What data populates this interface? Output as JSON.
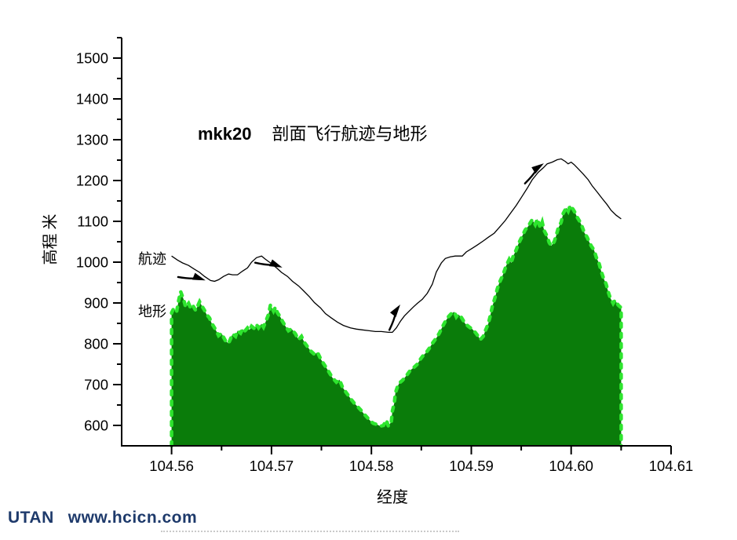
{
  "title": {
    "prefix": "mkk20",
    "main": "剖面飞行航迹与地形"
  },
  "labels": {
    "trajectory": "航迹",
    "terrain": "地形"
  },
  "axis": {
    "ylabel": "高程 米",
    "xlabel": "经度"
  },
  "footer": {
    "brand": "UTAN",
    "url": "www.hcicn.com",
    "color": "#1e3a6b"
  },
  "colors": {
    "terrain_fill": "#0a7c0a",
    "terrain_edge": "#2ee52e",
    "line": "#000000",
    "axis": "#000000"
  },
  "chart_data": {
    "type": "area+line",
    "title": "mkk20 剖面飞行航迹与地形",
    "xlabel": "经度",
    "ylabel": "高程 米",
    "xlim": [
      104.555,
      104.61
    ],
    "ylim": [
      550,
      1550
    ],
    "grid": false,
    "xticks": {
      "major": [
        104.56,
        104.57,
        104.58,
        104.59,
        104.6,
        104.61
      ],
      "minor": [
        104.565,
        104.575,
        104.585,
        104.595,
        104.605
      ],
      "decimals": 2
    },
    "yticks": {
      "major": [
        600,
        700,
        800,
        900,
        1000,
        1100,
        1200,
        1300,
        1400,
        1500
      ],
      "minor": [
        650,
        750,
        850,
        950,
        1050,
        1150,
        1250,
        1350,
        1450,
        1550
      ]
    },
    "series": [
      {
        "name": "地形",
        "type": "area",
        "points": [
          [
            104.56,
            876
          ],
          [
            104.5602,
            886
          ],
          [
            104.5605,
            878
          ],
          [
            104.5607,
            905
          ],
          [
            104.5609,
            928
          ],
          [
            104.5612,
            909
          ],
          [
            104.5614,
            890
          ],
          [
            104.5617,
            899
          ],
          [
            104.5619,
            888
          ],
          [
            104.5621,
            895
          ],
          [
            104.5624,
            882
          ],
          [
            104.5626,
            892
          ],
          [
            104.5628,
            903
          ],
          [
            104.5631,
            890
          ],
          [
            104.5633,
            882
          ],
          [
            104.5635,
            872
          ],
          [
            104.5638,
            863
          ],
          [
            104.564,
            851
          ],
          [
            104.5643,
            839
          ],
          [
            104.5645,
            830
          ],
          [
            104.5647,
            820
          ],
          [
            104.565,
            826
          ],
          [
            104.5652,
            816
          ],
          [
            104.5654,
            807
          ],
          [
            104.5657,
            801
          ],
          [
            104.5659,
            812
          ],
          [
            104.5661,
            824
          ],
          [
            104.5664,
            818
          ],
          [
            104.5666,
            832
          ],
          [
            104.5669,
            826
          ],
          [
            104.5671,
            836
          ],
          [
            104.5673,
            830
          ],
          [
            104.5676,
            839
          ],
          [
            104.5678,
            834
          ],
          [
            104.568,
            843
          ],
          [
            104.5683,
            837
          ],
          [
            104.5685,
            847
          ],
          [
            104.5687,
            839
          ],
          [
            104.569,
            849
          ],
          [
            104.5692,
            841
          ],
          [
            104.5694,
            853
          ],
          [
            104.5697,
            872
          ],
          [
            104.5699,
            895
          ],
          [
            104.5702,
            880
          ],
          [
            104.5704,
            890
          ],
          [
            104.5706,
            876
          ],
          [
            104.5709,
            865
          ],
          [
            104.5711,
            855
          ],
          [
            104.5714,
            843
          ],
          [
            104.5717,
            832
          ],
          [
            104.572,
            837
          ],
          [
            104.5724,
            824
          ],
          [
            104.5727,
            810
          ],
          [
            104.573,
            818
          ],
          [
            104.5733,
            803
          ],
          [
            104.5736,
            793
          ],
          [
            104.5739,
            783
          ],
          [
            104.5743,
            774
          ],
          [
            104.5746,
            779
          ],
          [
            104.5749,
            764
          ],
          [
            104.5752,
            752
          ],
          [
            104.5755,
            741
          ],
          [
            104.5758,
            729
          ],
          [
            104.5761,
            717
          ],
          [
            104.5765,
            706
          ],
          [
            104.5768,
            712
          ],
          [
            104.5771,
            694
          ],
          [
            104.5774,
            683
          ],
          [
            104.5777,
            673
          ],
          [
            104.578,
            663
          ],
          [
            104.5783,
            654
          ],
          [
            104.5787,
            644
          ],
          [
            104.579,
            636
          ],
          [
            104.5793,
            627
          ],
          [
            104.5796,
            619
          ],
          [
            104.5799,
            611
          ],
          [
            104.5802,
            605
          ],
          [
            104.5806,
            602
          ],
          [
            104.5809,
            598
          ],
          [
            104.5812,
            600
          ],
          [
            104.5815,
            613
          ],
          [
            104.5817,
            598
          ],
          [
            104.582,
            609
          ],
          [
            104.5821,
            635
          ],
          [
            104.5823,
            656
          ],
          [
            104.5824,
            679
          ],
          [
            104.5826,
            694
          ],
          [
            104.5828,
            704
          ],
          [
            104.5831,
            710
          ],
          [
            104.5833,
            716
          ],
          [
            104.5836,
            725
          ],
          [
            104.5839,
            735
          ],
          [
            104.5843,
            743
          ],
          [
            104.5846,
            750
          ],
          [
            104.5849,
            762
          ],
          [
            104.5852,
            772
          ],
          [
            104.5855,
            779
          ],
          [
            104.5858,
            789
          ],
          [
            104.5861,
            801
          ],
          [
            104.5865,
            814
          ],
          [
            104.5868,
            826
          ],
          [
            104.5871,
            841
          ],
          [
            104.5874,
            855
          ],
          [
            104.5877,
            866
          ],
          [
            104.588,
            874
          ],
          [
            104.5883,
            878
          ],
          [
            104.5885,
            866
          ],
          [
            104.5887,
            872
          ],
          [
            104.589,
            865
          ],
          [
            104.5892,
            857
          ],
          [
            104.5894,
            849
          ],
          [
            104.5898,
            841
          ],
          [
            104.5901,
            836
          ],
          [
            104.5904,
            828
          ],
          [
            104.5907,
            818
          ],
          [
            104.5909,
            810
          ],
          [
            104.5912,
            818
          ],
          [
            104.5914,
            832
          ],
          [
            104.5917,
            849
          ],
          [
            104.5919,
            868
          ],
          [
            104.5921,
            891
          ],
          [
            104.5924,
            915
          ],
          [
            104.5926,
            934
          ],
          [
            104.5928,
            949
          ],
          [
            104.5931,
            965
          ],
          [
            104.5933,
            978
          ],
          [
            104.5935,
            992
          ],
          [
            104.5938,
            1007
          ],
          [
            104.594,
            998
          ],
          [
            104.5942,
            1015
          ],
          [
            104.5945,
            1030
          ],
          [
            104.5947,
            1044
          ],
          [
            104.595,
            1059
          ],
          [
            104.5952,
            1069
          ],
          [
            104.5954,
            1079
          ],
          [
            104.5957,
            1088
          ],
          [
            104.5959,
            1096
          ],
          [
            104.5961,
            1104
          ],
          [
            104.5964,
            1092
          ],
          [
            104.5966,
            1106
          ],
          [
            104.5969,
            1085
          ],
          [
            104.5971,
            1098
          ],
          [
            104.5973,
            1077
          ],
          [
            104.5976,
            1063
          ],
          [
            104.5978,
            1048
          ],
          [
            104.598,
            1040
          ],
          [
            104.5983,
            1050
          ],
          [
            104.5985,
            1065
          ],
          [
            104.5987,
            1083
          ],
          [
            104.599,
            1098
          ],
          [
            104.5992,
            1119
          ],
          [
            104.5995,
            1133
          ],
          [
            104.5997,
            1125
          ],
          [
            104.5999,
            1139
          ],
          [
            104.6002,
            1129
          ],
          [
            104.6004,
            1121
          ],
          [
            104.6006,
            1110
          ],
          [
            104.6009,
            1098
          ],
          [
            104.6011,
            1087
          ],
          [
            104.6013,
            1073
          ],
          [
            104.6016,
            1061
          ],
          [
            104.6018,
            1050
          ],
          [
            104.602,
            1040
          ],
          [
            104.6023,
            1029
          ],
          [
            104.6025,
            1013
          ],
          [
            104.6028,
            996
          ],
          [
            104.603,
            978
          ],
          [
            104.6032,
            963
          ],
          [
            104.6035,
            946
          ],
          [
            104.6037,
            928
          ],
          [
            104.6039,
            913
          ],
          [
            104.6042,
            899
          ],
          [
            104.6044,
            907
          ],
          [
            104.6047,
            895
          ],
          [
            104.605,
            888
          ]
        ]
      },
      {
        "name": "航迹",
        "type": "line",
        "points": [
          [
            104.56,
            1015
          ],
          [
            104.5606,
            1005
          ],
          [
            104.5611,
            998
          ],
          [
            104.5617,
            992
          ],
          [
            104.5622,
            984
          ],
          [
            104.5628,
            975
          ],
          [
            104.5633,
            965
          ],
          [
            104.5639,
            955
          ],
          [
            104.5643,
            953
          ],
          [
            104.5647,
            957
          ],
          [
            104.5652,
            965
          ],
          [
            104.5657,
            971
          ],
          [
            104.5661,
            969
          ],
          [
            104.5666,
            969
          ],
          [
            104.5671,
            978
          ],
          [
            104.5676,
            986
          ],
          [
            104.568,
            1000
          ],
          [
            104.5685,
            1011
          ],
          [
            104.569,
            1015
          ],
          [
            104.5694,
            1007
          ],
          [
            104.5699,
            998
          ],
          [
            104.5705,
            986
          ],
          [
            104.571,
            975
          ],
          [
            104.5716,
            965
          ],
          [
            104.5721,
            953
          ],
          [
            104.5727,
            942
          ],
          [
            104.5732,
            930
          ],
          [
            104.5738,
            915
          ],
          [
            104.5743,
            901
          ],
          [
            104.5749,
            888
          ],
          [
            104.5754,
            874
          ],
          [
            104.576,
            863
          ],
          [
            104.5766,
            853
          ],
          [
            104.5772,
            845
          ],
          [
            104.5779,
            839
          ],
          [
            104.5785,
            836
          ],
          [
            104.5791,
            834
          ],
          [
            104.5798,
            832
          ],
          [
            104.5804,
            830
          ],
          [
            104.581,
            830
          ],
          [
            104.5817,
            828
          ],
          [
            104.5821,
            828
          ],
          [
            104.5825,
            839
          ],
          [
            104.5829,
            855
          ],
          [
            104.5833,
            868
          ],
          [
            104.5837,
            878
          ],
          [
            104.5842,
            890
          ],
          [
            104.5846,
            899
          ],
          [
            104.5851,
            909
          ],
          [
            104.5856,
            924
          ],
          [
            104.5861,
            946
          ],
          [
            104.5865,
            976
          ],
          [
            104.587,
            998
          ],
          [
            104.5874,
            1009
          ],
          [
            104.5879,
            1013
          ],
          [
            104.5884,
            1015
          ],
          [
            104.5891,
            1015
          ],
          [
            104.5895,
            1025
          ],
          [
            104.5901,
            1034
          ],
          [
            104.5906,
            1042
          ],
          [
            104.5912,
            1052
          ],
          [
            104.5917,
            1061
          ],
          [
            104.5923,
            1071
          ],
          [
            104.5928,
            1085
          ],
          [
            104.5934,
            1102
          ],
          [
            104.5939,
            1119
          ],
          [
            104.5945,
            1139
          ],
          [
            104.595,
            1158
          ],
          [
            104.5956,
            1181
          ],
          [
            104.5961,
            1202
          ],
          [
            104.5967,
            1220
          ],
          [
            104.5972,
            1231
          ],
          [
            104.5976,
            1241
          ],
          [
            104.5981,
            1245
          ],
          [
            104.5986,
            1251
          ],
          [
            104.599,
            1253
          ],
          [
            104.5994,
            1247
          ],
          [
            104.5997,
            1241
          ],
          [
            104.6,
            1245
          ],
          [
            104.6003,
            1239
          ],
          [
            104.6007,
            1229
          ],
          [
            104.6012,
            1216
          ],
          [
            104.6017,
            1202
          ],
          [
            104.6021,
            1187
          ],
          [
            104.6026,
            1172
          ],
          [
            104.6031,
            1156
          ],
          [
            104.6036,
            1141
          ],
          [
            104.604,
            1127
          ],
          [
            104.6045,
            1115
          ],
          [
            104.605,
            1106
          ]
        ]
      }
    ],
    "arrows": [
      {
        "lon": 104.5631,
        "elev": 958,
        "angle": 22
      },
      {
        "lon": 104.5708,
        "elev": 990,
        "angle": 25
      },
      {
        "lon": 104.5827,
        "elev": 890,
        "angle": -52
      },
      {
        "lon": 104.597,
        "elev": 1238,
        "angle": -32
      }
    ],
    "legend_position": "inline-annotations"
  }
}
